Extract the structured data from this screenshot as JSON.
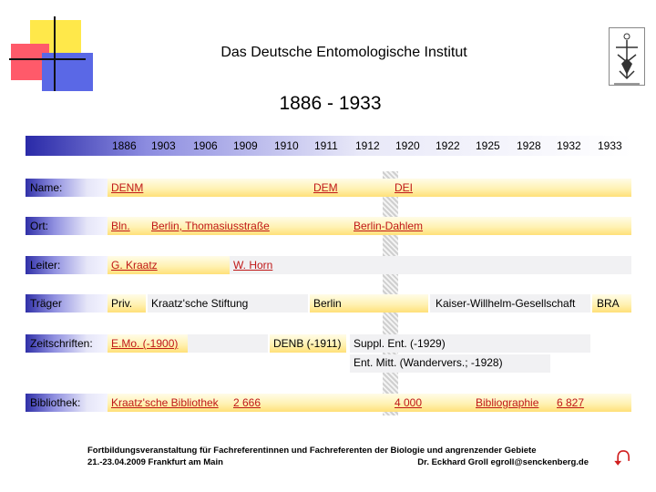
{
  "header": {
    "title": "Das Deutsche Entomologische Institut",
    "period": "1886 - 1933"
  },
  "years": [
    "1886",
    "1903",
    "1906",
    "1909",
    "1910",
    "1911",
    "1912",
    "1920",
    "1922",
    "1925",
    "1928",
    "1932",
    "1933"
  ],
  "rows": {
    "name": {
      "label": "Name:",
      "cells": [
        "DENM",
        "DEM",
        "DEI"
      ]
    },
    "ort": {
      "label": "Ort:",
      "cells": [
        "Bln.",
        "Berlin, Thomasiusstraße",
        "Berlin-Dahlem"
      ]
    },
    "leiter": {
      "label": "Leiter:",
      "cells": [
        "G. Kraatz",
        "W. Horn"
      ]
    },
    "traeger": {
      "label": "Träger",
      "cells": [
        "Priv.",
        "Kraatz'sche Stiftung",
        "Berlin",
        "Kaiser-Willhelm-Gesellschaft",
        "BRA"
      ]
    },
    "zeitschriften": {
      "label": "Zeitschriften:",
      "cells": [
        "E.Mo. (-1900)",
        "DENB (-1911)",
        "Suppl. Ent. (-1929)",
        "Ent. Mitt. (Wandervers.; -1928)"
      ]
    },
    "bibliothek": {
      "label": "Bibliothek:",
      "cells": [
        "Kraatz'sche Bibliothek",
        "2 666",
        "4 000",
        "Bibliographie",
        "6 827"
      ]
    }
  },
  "footer": {
    "line1": "Fortbildungsveranstaltung für Fachreferentinnen und Fachreferenten der Biologie und angrenzender Gebiete",
    "line2_left": "21.-23.04.2009 Frankfurt am Main",
    "line2_right": "Dr. Eckhard Groll egroll@senckenberg.de"
  },
  "icons": {
    "nav": "return-arrow-icon",
    "emblem": "entomology-emblem-icon"
  },
  "colors": {
    "accent_blue": "#3030a8",
    "accent_yellow": "#ffe078",
    "arrow_red": "#d02020"
  }
}
